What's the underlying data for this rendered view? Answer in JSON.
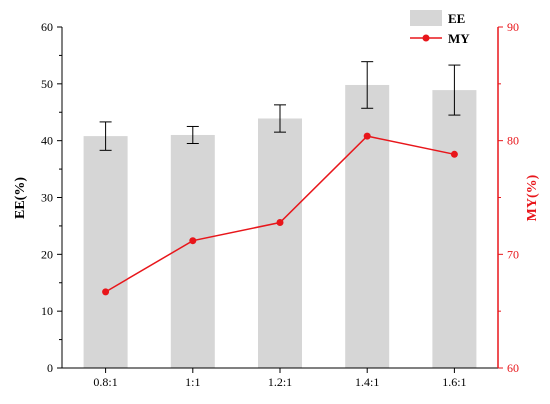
{
  "chart_data": {
    "type": "bar",
    "categories": [
      "0.8:1",
      "1:1",
      "1.2:1",
      "1.4:1",
      "1.6:1"
    ],
    "series": [
      {
        "name": "EE",
        "type": "bar",
        "axis": "left",
        "values": [
          40.8,
          41.0,
          43.9,
          49.8,
          48.9
        ],
        "errors": [
          2.5,
          1.5,
          2.4,
          4.1,
          4.4
        ],
        "color": "#d6d6d6"
      },
      {
        "name": "MY",
        "type": "line",
        "axis": "right",
        "values": [
          66.7,
          71.2,
          72.8,
          80.4,
          78.8
        ],
        "color": "#e8161b"
      }
    ],
    "ylabel": "EE(%)",
    "y2label": "MY(%)",
    "ylim": [
      0,
      60
    ],
    "y2lim": [
      60,
      90
    ],
    "yticks": [
      "0",
      "10",
      "20",
      "30",
      "40",
      "50",
      "60"
    ],
    "y2ticks": [
      "60",
      "70",
      "80",
      "90"
    ],
    "right_axis_color": "#e8161b",
    "grid": false,
    "legend_position": "top-right"
  }
}
